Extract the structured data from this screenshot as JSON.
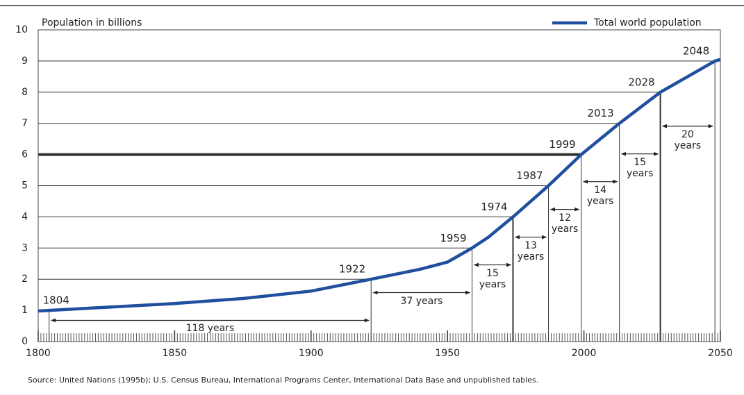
{
  "chart_data": {
    "type": "line",
    "ylabel": "Population in billions",
    "source": "Source:  United Nations (1995b); U.S. Census Bureau, International Programs Center, International Data Base and unpublished tables.",
    "series": [
      {
        "name": "Total world population",
        "color": "#1f4f9e",
        "x": [
          1800,
          1804,
          1825,
          1850,
          1875,
          1900,
          1922,
          1940,
          1950,
          1959,
          1965,
          1974,
          1987,
          1999,
          2013,
          2028,
          2040,
          2048,
          2050
        ],
        "values": [
          0.98,
          1,
          1.1,
          1.22,
          1.38,
          1.62,
          2,
          2.32,
          2.55,
          3,
          3.35,
          4,
          5,
          6,
          7,
          8,
          8.6,
          9,
          9.05
        ]
      }
    ],
    "milestones": {
      "x": [
        1804,
        1922,
        1959,
        1974,
        1987,
        1999,
        2013,
        2028,
        2048
      ],
      "y": [
        1,
        2,
        3,
        4,
        5,
        6,
        7,
        8,
        9
      ]
    },
    "intervals": [
      "118 years",
      "37 years",
      "15 years",
      "13 years",
      "12 years",
      "14 years",
      "15 years",
      "20 years"
    ],
    "highlight_y": 6,
    "xlim": [
      1800,
      2050
    ],
    "xticks": [
      1800,
      1850,
      1900,
      1950,
      2000,
      2050
    ],
    "ylim": [
      0,
      10
    ],
    "yticks": [
      0,
      1,
      2,
      3,
      4,
      5,
      6,
      7,
      8,
      9,
      10
    ],
    "legend": "top-right"
  }
}
